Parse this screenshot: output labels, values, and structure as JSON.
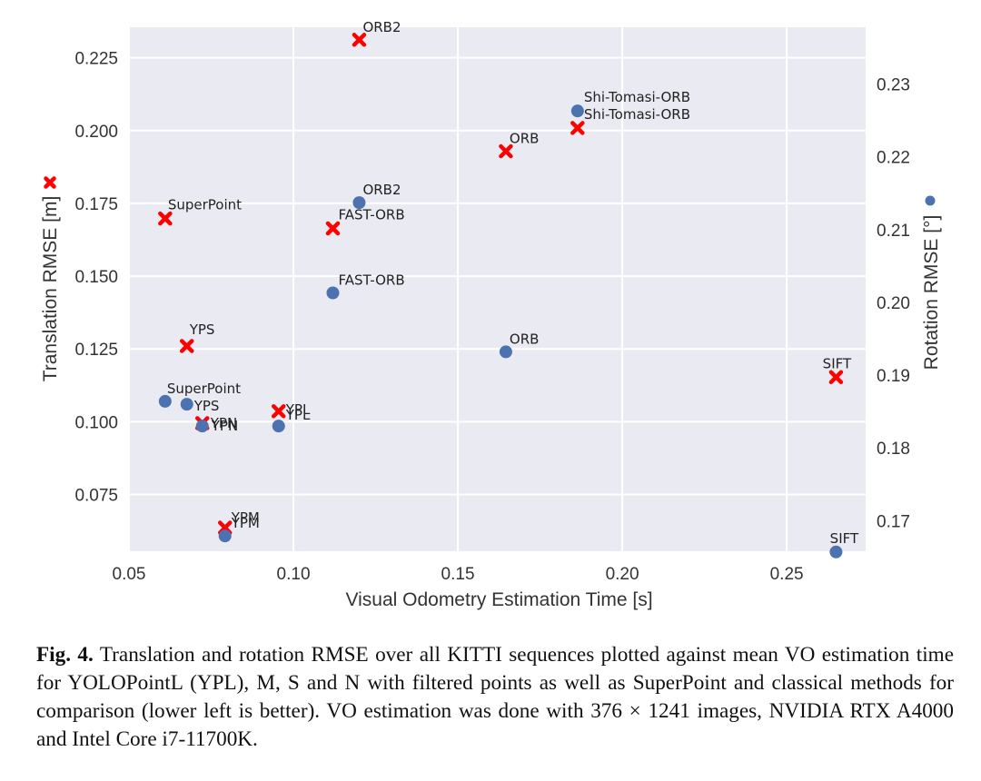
{
  "chart_data": {
    "type": "scatter",
    "title": "",
    "xlabel": "Visual Odometry Estimation Time [s]",
    "ylabel": "Translation RMSE [m]",
    "ylabel_right": "Rotation RMSE [°]",
    "xlim": [
      0.05,
      0.274
    ],
    "ylim": [
      0.0555,
      0.2355
    ],
    "ylim_right": [
      0.1658,
      0.2378
    ],
    "xticks": [
      "0.05",
      "0.10",
      "0.15",
      "0.20",
      "0.25"
    ],
    "xtick_values": [
      0.05,
      0.1,
      0.15,
      0.2,
      0.25
    ],
    "yticks": [
      "0.075",
      "0.100",
      "0.125",
      "0.150",
      "0.175",
      "0.200",
      "0.225"
    ],
    "ytick_values": [
      0.075,
      0.1,
      0.125,
      0.15,
      0.175,
      0.2,
      0.225
    ],
    "yticks_right": [
      "0.17",
      "0.18",
      "0.19",
      "0.20",
      "0.21",
      "0.22",
      "0.23"
    ],
    "ytick_values_right": [
      0.17,
      0.18,
      0.19,
      0.2,
      0.21,
      0.22,
      0.23
    ],
    "grid": true,
    "series": [
      {
        "name": "Translation RMSE",
        "axis": "left",
        "marker": "x",
        "color": "#ff0000",
        "points": [
          {
            "label": "ORB2",
            "x": 0.12,
            "y": 0.2312
          },
          {
            "label": "Shi-Tomasi-ORB",
            "x": 0.1864,
            "y": 0.2009
          },
          {
            "label": "ORB",
            "x": 0.1646,
            "y": 0.1929
          },
          {
            "label": "SuperPoint",
            "x": 0.061,
            "y": 0.1698
          },
          {
            "label": "FAST-ORB",
            "x": 0.112,
            "y": 0.1664
          },
          {
            "label": "YPS",
            "x": 0.0676,
            "y": 0.126
          },
          {
            "label": "SIFT",
            "x": 0.265,
            "y": 0.1153
          },
          {
            "label": "YPL",
            "x": 0.0955,
            "y": 0.1036
          },
          {
            "label": "YPN",
            "x": 0.0723,
            "y": 0.0995
          },
          {
            "label": "YPM",
            "x": 0.0792,
            "y": 0.0636
          }
        ]
      },
      {
        "name": "Rotation RMSE",
        "axis": "right",
        "marker": "o",
        "color": "#4c72b0",
        "points": [
          {
            "label": "Shi-Tomasi-ORB",
            "x": 0.1864,
            "y": 0.2263
          },
          {
            "label": "ORB2",
            "x": 0.12,
            "y": 0.2137
          },
          {
            "label": "FAST-ORB",
            "x": 0.112,
            "y": 0.2013
          },
          {
            "label": "ORB",
            "x": 0.1646,
            "y": 0.1932
          },
          {
            "label": "SuperPoint",
            "x": 0.061,
            "y": 0.1864
          },
          {
            "label": "YPS",
            "x": 0.0676,
            "y": 0.186
          },
          {
            "label": "YPN",
            "x": 0.0723,
            "y": 0.183
          },
          {
            "label": "YPL",
            "x": 0.0955,
            "y": 0.183
          },
          {
            "label": "YPM",
            "x": 0.0792,
            "y": 0.1679
          },
          {
            "label": "SIFT",
            "x": 0.265,
            "y": 0.1657
          }
        ]
      }
    ],
    "legend": "axis-label markers"
  },
  "caption": {
    "prefix": "Fig. 4.",
    "text": " Translation and rotation RMSE over all KITTI sequences plotted against mean VO estimation time for YOLOPointL (YPL), M, S and N with filtered points as well as SuperPoint and classical methods for comparison (lower left is better). VO estimation was done with 376 × 1241 images, NVIDIA RTX A4000 and Intel Core i7-11700K."
  },
  "colors": {
    "plot_background": "#eaeaf2",
    "grid": "#ffffff",
    "translation_marker": "#ff0000",
    "rotation_marker": "#4c72b0"
  }
}
